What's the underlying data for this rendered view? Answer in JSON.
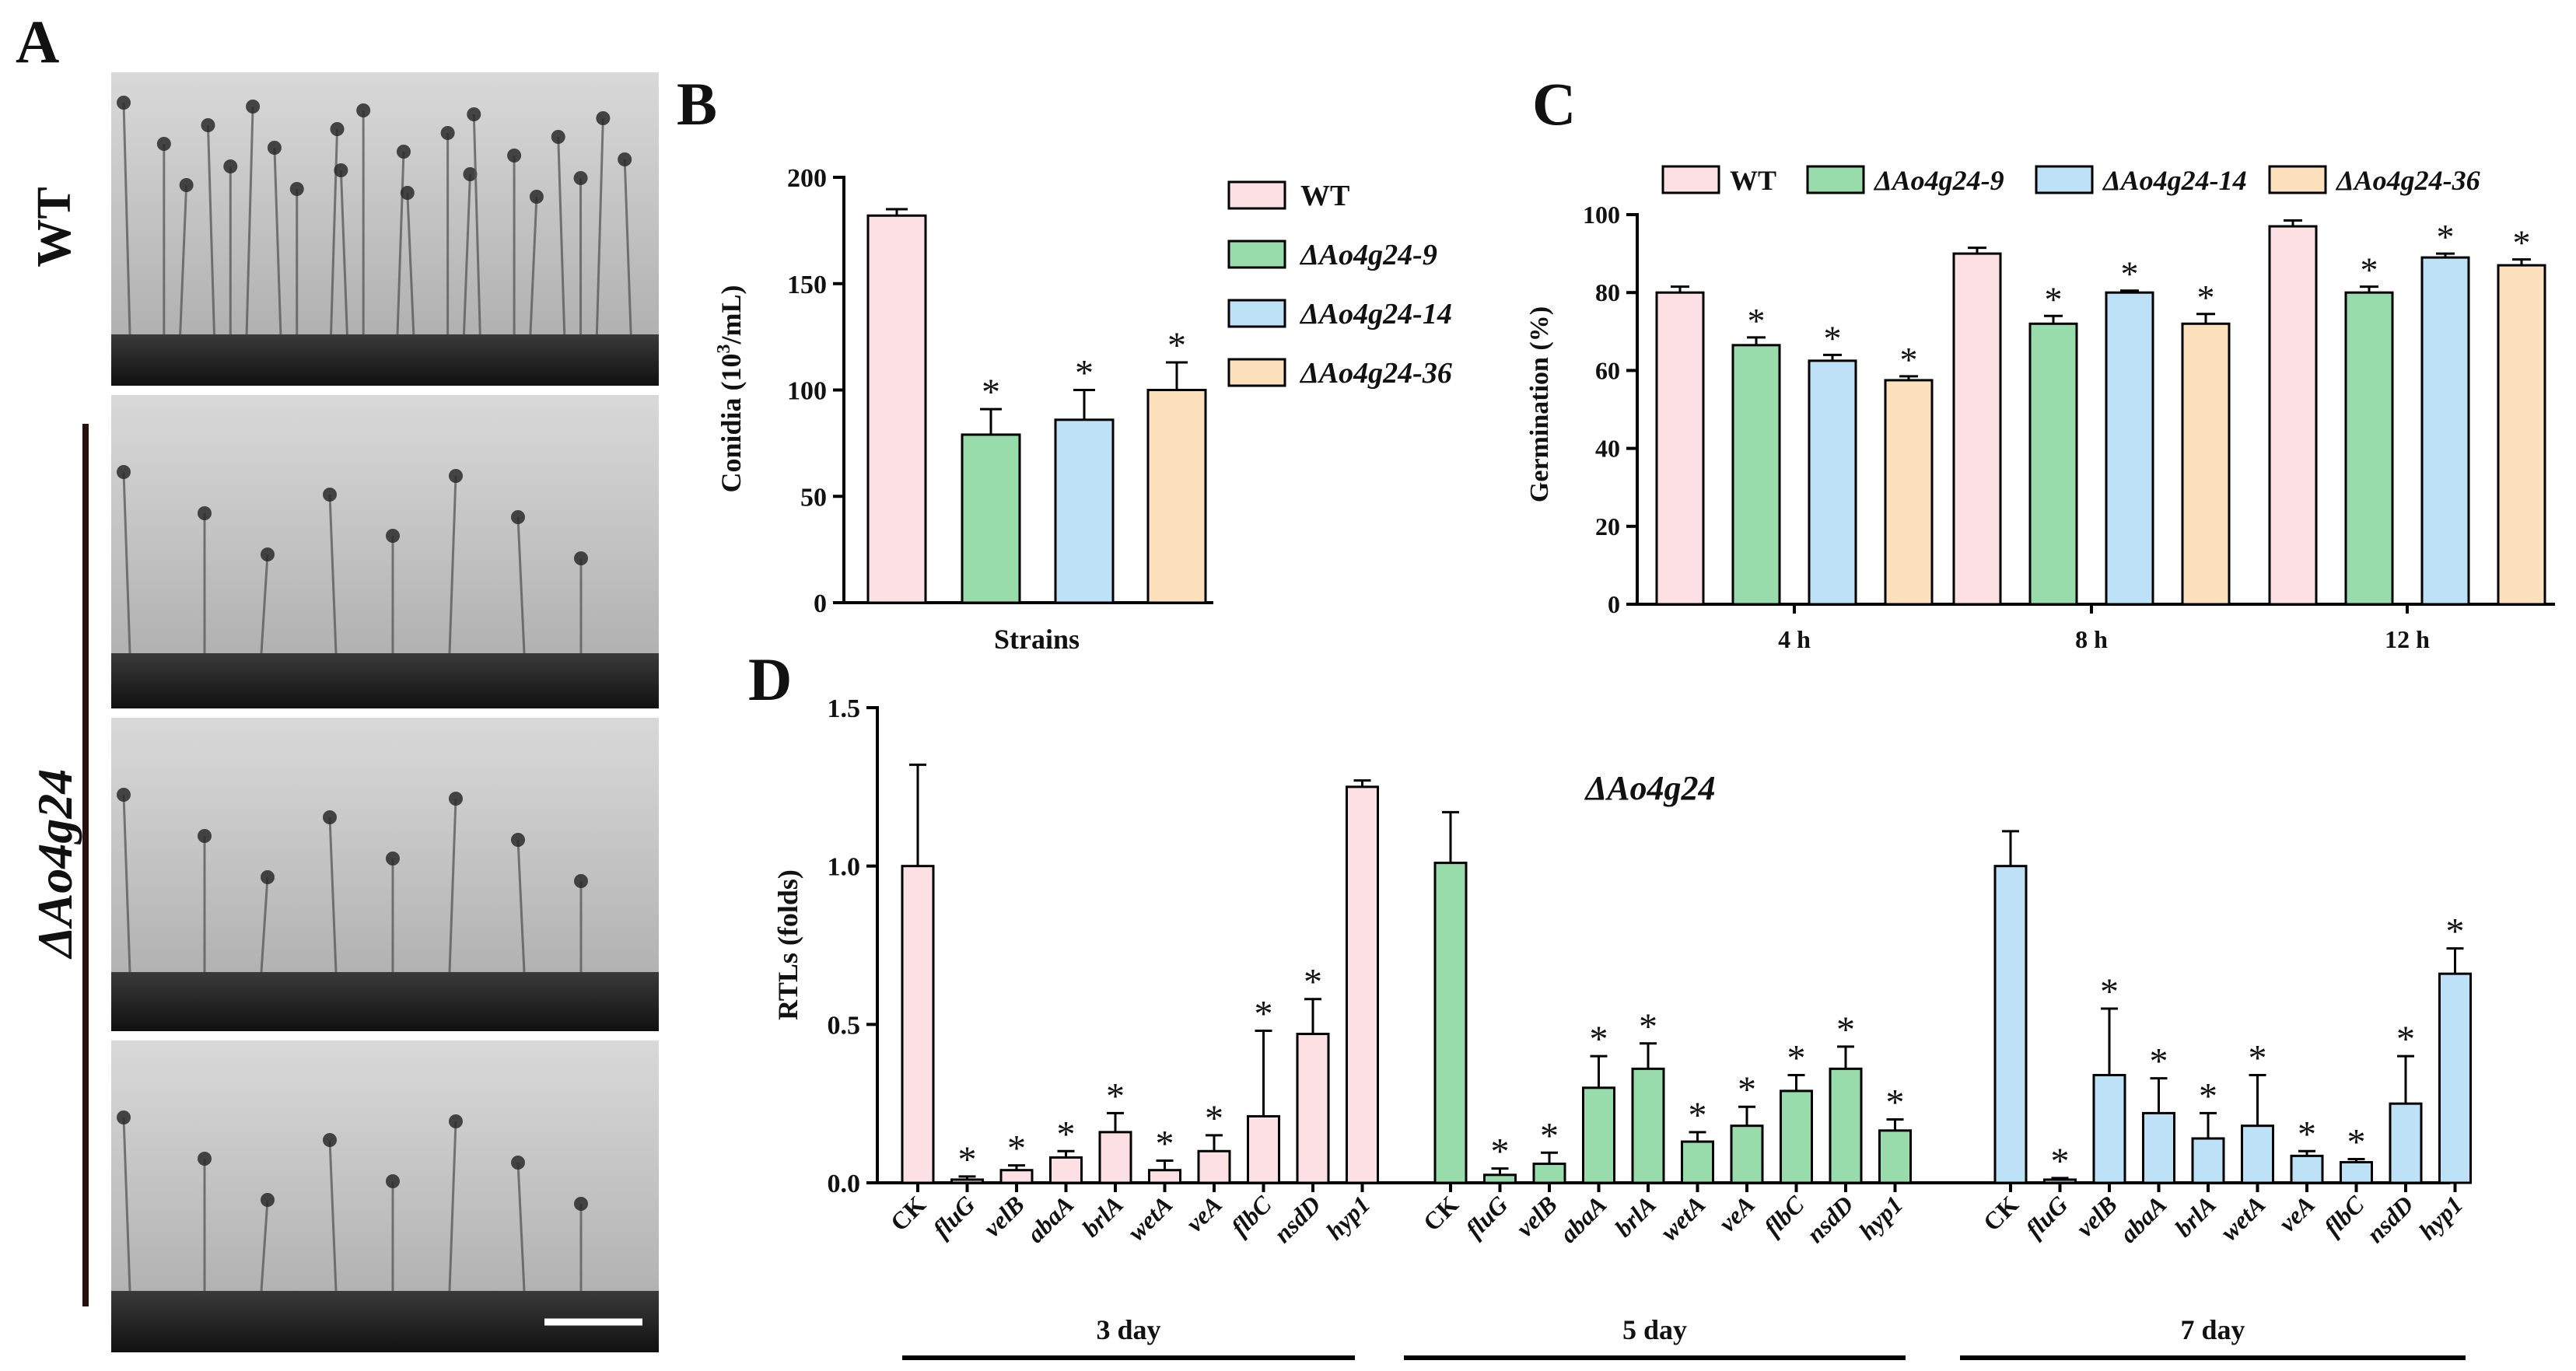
{
  "figure_labels": {
    "a": "A",
    "b": "B",
    "c": "C",
    "d": "D"
  },
  "panel_a": {
    "row_label_wt": "WT",
    "row_label_mutant": "ΔAo4g24",
    "images": [
      "wt-conidiophores",
      "mutant-conidiophores-9",
      "mutant-conidiophores-14",
      "mutant-conidiophores-36"
    ]
  },
  "colors": {
    "wt": "#fce0e3",
    "m9": "#98dcac",
    "m14": "#bde1f6",
    "m36": "#fde0bc",
    "axis": "#000000"
  },
  "chart_data": [
    {
      "id": "B",
      "type": "bar",
      "categories": [
        "WT",
        "ΔAo4g24-9",
        "ΔAo4g24-14",
        "ΔAo4g24-36"
      ],
      "values": [
        182,
        79,
        86,
        100
      ],
      "errors": [
        3,
        12,
        14,
        13
      ],
      "significance": [
        "",
        "*",
        "*",
        "*"
      ],
      "title": "",
      "xlabel": "Strains",
      "ylabel_prefix": "Conidia (10",
      "ylabel_sup": "3",
      "ylabel_suffix": "/mL)",
      "ylim": [
        0,
        200
      ],
      "yticks": [
        "0",
        "50",
        "100",
        "150",
        "200"
      ],
      "legend": [
        "WT",
        "ΔAo4g24-9",
        "ΔAo4g24-14",
        "ΔAo4g24-36"
      ]
    },
    {
      "id": "C",
      "type": "bar",
      "categories": [
        "4 h",
        "8 h",
        "12 h"
      ],
      "series": [
        {
          "name": "WT",
          "values": [
            80,
            90,
            97
          ],
          "errors": [
            1.5,
            1.5,
            1.5
          ],
          "significance": [
            "",
            "",
            ""
          ]
        },
        {
          "name": "ΔAo4g24-9",
          "values": [
            66.5,
            72,
            80
          ],
          "errors": [
            2,
            2,
            1.5
          ],
          "significance": [
            "*",
            "*",
            "*"
          ]
        },
        {
          "name": "ΔAo4g24-14",
          "values": [
            62.5,
            80,
            89
          ],
          "errors": [
            1.5,
            0.5,
            1
          ],
          "significance": [
            "*",
            "*",
            "*"
          ]
        },
        {
          "name": "ΔAo4g24-36",
          "values": [
            57.5,
            72,
            87
          ],
          "errors": [
            1,
            2.5,
            1.5
          ],
          "significance": [
            "*",
            "*",
            "*"
          ]
        }
      ],
      "ylabel": "Germination (%)",
      "ylim": [
        0,
        100
      ],
      "yticks": [
        "0",
        "20",
        "40",
        "60",
        "80",
        "100"
      ]
    },
    {
      "id": "D",
      "type": "bar",
      "title": "ΔAo4g24",
      "ylabel": "RTLs (folds)",
      "ylim": [
        0,
        1.5
      ],
      "yticks": [
        "0.0",
        "0.5",
        "1.0",
        "1.5"
      ],
      "groups": [
        {
          "label": "3 day",
          "color_key": "wt",
          "categories": [
            "CK",
            "fluG",
            "velB",
            "abaA",
            "brlA",
            "wetA",
            "veA",
            "flbC",
            "nsdD",
            "hyp1"
          ],
          "values": [
            1.0,
            0.01,
            0.04,
            0.08,
            0.16,
            0.04,
            0.1,
            0.21,
            0.47,
            1.25
          ],
          "errors": [
            0.32,
            0.01,
            0.015,
            0.02,
            0.06,
            0.03,
            0.05,
            0.27,
            0.11,
            0.02
          ],
          "significance": [
            "",
            "*",
            "*",
            "*",
            "*",
            "*",
            "*",
            "*",
            "*",
            ""
          ]
        },
        {
          "label": "5 day",
          "color_key": "m9",
          "categories": [
            "CK",
            "fluG",
            "velB",
            "abaA",
            "brlA",
            "wetA",
            "veA",
            "flbC",
            "nsdD",
            "hyp1"
          ],
          "values": [
            1.01,
            0.025,
            0.06,
            0.3,
            0.36,
            0.13,
            0.18,
            0.29,
            0.36,
            0.165
          ],
          "errors": [
            0.16,
            0.02,
            0.035,
            0.1,
            0.08,
            0.03,
            0.06,
            0.05,
            0.07,
            0.035
          ],
          "significance": [
            "",
            "*",
            "*",
            "*",
            "*",
            "*",
            "*",
            "*",
            "*",
            "*"
          ]
        },
        {
          "label": "7 day",
          "color_key": "m14",
          "categories": [
            "CK",
            "fluG",
            "velB",
            "abaA",
            "brlA",
            "wetA",
            "veA",
            "flbC",
            "nsdD",
            "hyp1"
          ],
          "values": [
            1.0,
            0.01,
            0.34,
            0.22,
            0.14,
            0.18,
            0.085,
            0.065,
            0.25,
            0.66
          ],
          "errors": [
            0.11,
            0.005,
            0.21,
            0.11,
            0.08,
            0.16,
            0.015,
            0.01,
            0.15,
            0.08
          ],
          "significance": [
            "",
            "*",
            "*",
            "*",
            "*",
            "*",
            "*",
            "*",
            "*",
            "*"
          ]
        }
      ]
    }
  ]
}
